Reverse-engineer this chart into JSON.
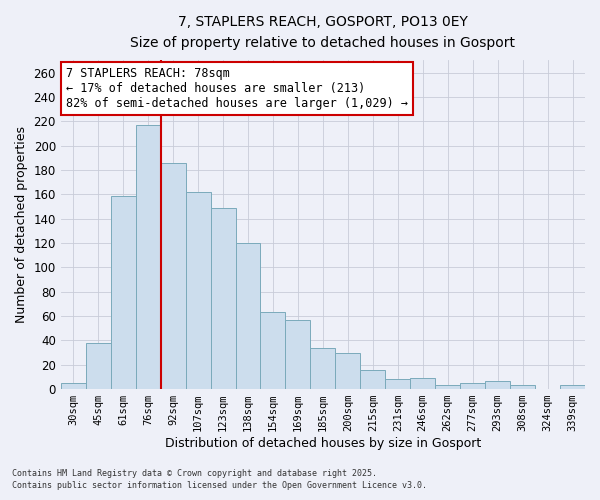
{
  "title": "7, STAPLERS REACH, GOSPORT, PO13 0EY",
  "subtitle": "Size of property relative to detached houses in Gosport",
  "xlabel": "Distribution of detached houses by size in Gosport",
  "ylabel": "Number of detached properties",
  "bar_color": "#ccdded",
  "bar_edge_color": "#7aaabb",
  "categories": [
    "30sqm",
    "45sqm",
    "61sqm",
    "76sqm",
    "92sqm",
    "107sqm",
    "123sqm",
    "138sqm",
    "154sqm",
    "169sqm",
    "185sqm",
    "200sqm",
    "215sqm",
    "231sqm",
    "246sqm",
    "262sqm",
    "277sqm",
    "293sqm",
    "308sqm",
    "324sqm",
    "339sqm"
  ],
  "values": [
    5,
    38,
    159,
    217,
    186,
    162,
    149,
    120,
    63,
    57,
    34,
    30,
    16,
    8,
    9,
    3,
    5,
    7,
    3,
    0,
    3
  ],
  "ylim": [
    0,
    270
  ],
  "yticks": [
    0,
    20,
    40,
    60,
    80,
    100,
    120,
    140,
    160,
    180,
    200,
    220,
    240,
    260
  ],
  "annotation_title": "7 STAPLERS REACH: 78sqm",
  "annotation_line1": "← 17% of detached houses are smaller (213)",
  "annotation_line2": "82% of semi-detached houses are larger (1,029) →",
  "annotation_box_color": "#ffffff",
  "annotation_box_edge_color": "#cc0000",
  "marker_bin_index": 3,
  "footnote1": "Contains HM Land Registry data © Crown copyright and database right 2025.",
  "footnote2": "Contains public sector information licensed under the Open Government Licence v3.0.",
  "bg_color": "#eef0f8",
  "grid_color": "#c8ccd8"
}
